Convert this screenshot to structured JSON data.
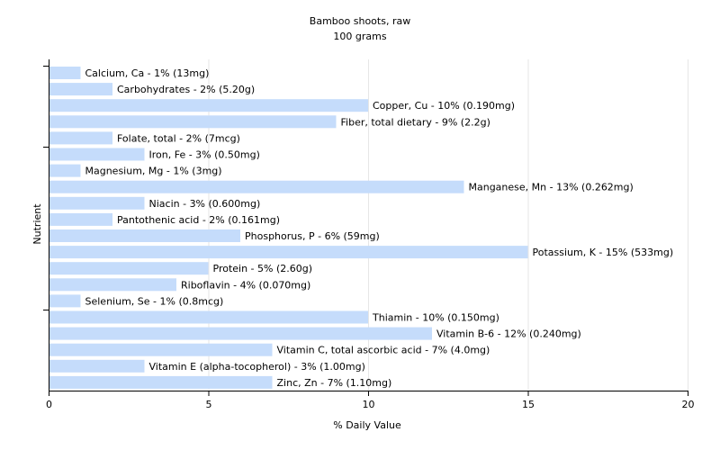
{
  "chart_data": {
    "type": "bar",
    "orientation": "horizontal",
    "title": "Bamboo shoots, raw",
    "subtitle": "100 grams",
    "xlabel": "% Daily Value",
    "ylabel": "Nutrient",
    "xlim": [
      0,
      20
    ],
    "xticks": [
      "0",
      "5",
      "10",
      "15",
      "20"
    ],
    "grid": true,
    "bar_color": "#c5dcfb",
    "categories": [
      "Calcium, Ca - 1% (13mg)",
      "Carbohydrates - 2% (5.20g)",
      "Copper, Cu - 10% (0.190mg)",
      "Fiber, total dietary - 9% (2.2g)",
      "Folate, total - 2% (7mcg)",
      "Iron, Fe - 3% (0.50mg)",
      "Magnesium, Mg - 1% (3mg)",
      "Manganese, Mn - 13% (0.262mg)",
      "Niacin - 3% (0.600mg)",
      "Pantothenic acid - 2% (0.161mg)",
      "Phosphorus, P - 6% (59mg)",
      "Potassium, K - 15% (533mg)",
      "Protein - 5% (2.60g)",
      "Riboflavin - 4% (0.070mg)",
      "Selenium, Se - 1% (0.8mcg)",
      "Thiamin - 10% (0.150mg)",
      "Vitamin B-6 - 12% (0.240mg)",
      "Vitamin C, total ascorbic acid - 7% (4.0mg)",
      "Vitamin E (alpha-tocopherol) - 3% (1.00mg)",
      "Zinc, Zn - 7% (1.10mg)"
    ],
    "values": [
      1,
      2,
      10,
      9,
      2,
      3,
      1,
      13,
      3,
      2,
      6,
      15,
      5,
      4,
      1,
      10,
      12,
      7,
      3,
      7
    ]
  }
}
